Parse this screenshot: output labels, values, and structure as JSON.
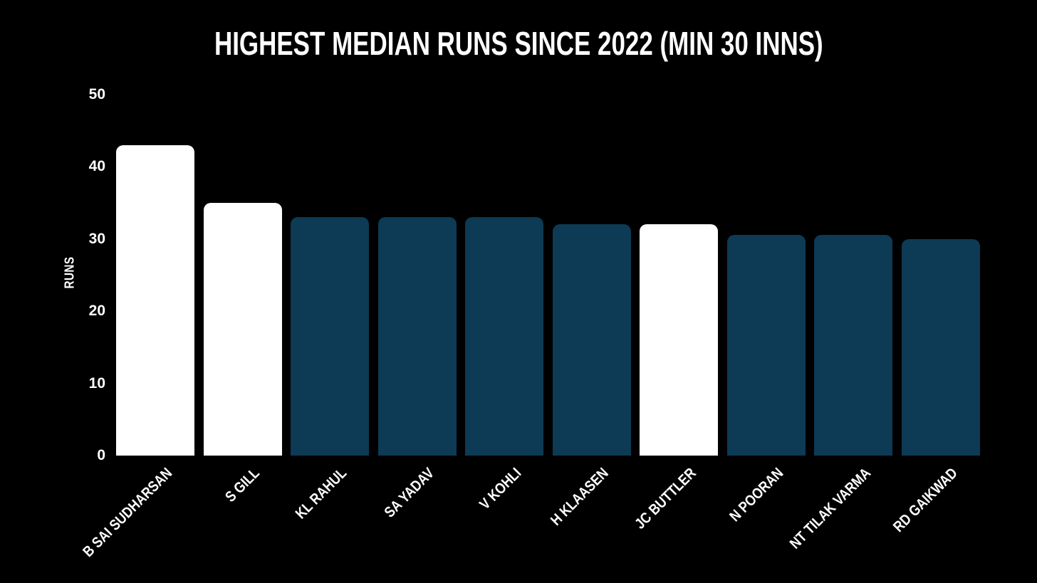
{
  "page": {
    "background": "#000000",
    "text_color": "#FFFFFF"
  },
  "chart_data": {
    "type": "bar",
    "title": "HIGHEST MEDIAN RUNS SINCE 2022 (MIN 30 INNS)",
    "ylabel": "RUNS",
    "xlabel": "",
    "ylim": [
      0,
      50
    ],
    "yticks": [
      0,
      10,
      20,
      30,
      40,
      50
    ],
    "grid": false,
    "legend": false,
    "background": "#000000",
    "highlight_color": "#FFFFFF",
    "default_bar_color": "#0D3A55",
    "categories": [
      "B SAI SUDHARSAN",
      "S GILL",
      "KL RAHUL",
      "SA YADAV",
      "V KOHLI",
      "H KLAASEN",
      "JC BUTTLER",
      "N POORAN",
      "NT TILAK VARMA",
      "RD GAIKWAD"
    ],
    "values": [
      43,
      35,
      33,
      33,
      33,
      32,
      32,
      30.5,
      30.5,
      30
    ],
    "bar_colors": [
      "#FFFFFF",
      "#FFFFFF",
      "#0D3A55",
      "#0D3A55",
      "#0D3A55",
      "#0D3A55",
      "#FFFFFF",
      "#0D3A55",
      "#0D3A55",
      "#0D3A55"
    ]
  }
}
